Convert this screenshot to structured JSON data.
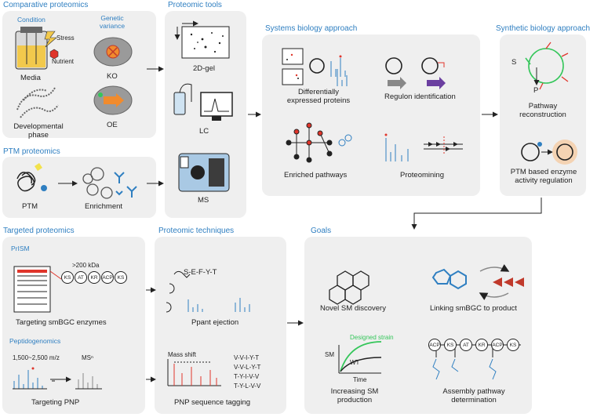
{
  "colors": {
    "accent": "#2f7fc1",
    "panel": "#efefef",
    "green": "#34c65a",
    "red": "#e0352b",
    "orange": "#f18b2d"
  },
  "comparative": {
    "title": "Comparative proteomics",
    "condition": "Condition",
    "genetic": "Genetic variance",
    "stress": "Stress",
    "nutrient": "Nutrient",
    "media": "Media",
    "ko": "KO",
    "developmental": "Developmental phase",
    "oe": "OE"
  },
  "ptm": {
    "title": "PTM proteomics",
    "ptm": "PTM",
    "enrichment": "Enrichment"
  },
  "tools": {
    "title": "Proteomic tools",
    "gel": "2D-gel",
    "lc": "LC",
    "ms": "MS"
  },
  "systems": {
    "title": "Systems biology approach",
    "diff": "Differentially expressed proteins",
    "regulon": "Regulon identification",
    "enriched": "Enriched pathways",
    "proteomining": "Proteomining"
  },
  "synthetic": {
    "title": "Synthetic biology approach",
    "s": "S",
    "p": "P",
    "pathway": "Pathway reconstruction",
    "ptm_reg": "PTM based enzyme activity regulation"
  },
  "targeted": {
    "title": "Targeted proteomics",
    "prism": "PrISM",
    "kda": ">200 kDa",
    "domains": [
      "KS",
      "AT",
      "KR",
      "ACP",
      "KS"
    ],
    "smbgc": "Targeting smBGC enzymes",
    "peptidogenomics": "Peptidogenomics",
    "mz": "1,500~2,500 m/z",
    "msn": "MSⁿ",
    "pnp": "Targeting PNP"
  },
  "techniques": {
    "title": "Proteomic techniques",
    "sefyt": "S-E-F-Y-T",
    "ppant": "Ppant ejection",
    "mass_shift": "Mass shift",
    "sequences": [
      "V-V-I-Y-T",
      "V-V-L-Y-T",
      "T-Y-I-V-V",
      "T-Y-L-V-V"
    ],
    "pnp_tag": "PNP sequence tagging"
  },
  "goals": {
    "title": "Goals",
    "novel": "Novel SM discovery",
    "linking": "Linking smBGC to product",
    "designed": "Designed strain",
    "wt": "WT",
    "sm": "SM",
    "time": "Time",
    "increasing": "Increasing SM production",
    "assembly": "Assembly pathway determination",
    "asm_domains": [
      "ACP",
      "KS",
      "AT",
      "KR",
      "ACP",
      "KS"
    ]
  }
}
